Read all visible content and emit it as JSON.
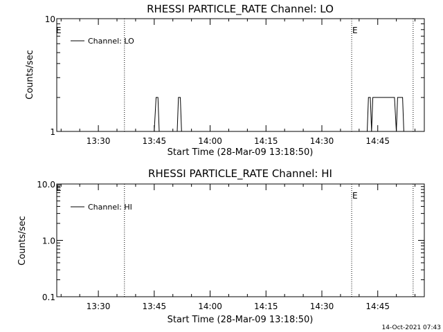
{
  "chart_data": [
    {
      "type": "line",
      "title": "RHESSI PARTICLE_RATE Channel: LO",
      "xlabel": "Start Time (28-Mar-09 13:18:50)",
      "ylabel": "Counts/sec",
      "y_scale": "log",
      "ylim": [
        1,
        10
      ],
      "y_ticks": [
        "1",
        "10"
      ],
      "xlim": [
        "13:18:50",
        "14:57:30"
      ],
      "x_ticks": [
        "13:30",
        "13:45",
        "14:00",
        "14:15",
        "14:30",
        "14:45"
      ],
      "legend": {
        "entries": [
          "Channel: LO"
        ],
        "placement": "top-left"
      },
      "event_lines": [
        {
          "time": "13:37:00",
          "label": ""
        },
        {
          "time": "14:38:00",
          "label": "E"
        },
        {
          "time": "14:54:30",
          "label": ""
        }
      ],
      "edge_label": "E",
      "series": [
        {
          "name": "Channel: LO",
          "x": [
            "13:44:40",
            "13:45:00",
            "13:45:30",
            "13:46:00",
            "13:46:20",
            "13:51:10",
            "13:51:30",
            "13:52:00",
            "13:52:20",
            "14:42:10",
            "14:42:30",
            "14:43:00",
            "14:43:20",
            "14:43:40",
            "14:44:10",
            "14:44:30",
            "14:49:30",
            "14:50:00",
            "14:50:20",
            "14:51:40",
            "14:52:00",
            "14:52:20"
          ],
          "values": [
            1,
            1,
            2,
            2,
            1,
            1,
            2,
            2,
            1,
            1,
            2,
            2,
            1,
            2,
            2,
            2,
            2,
            1,
            2,
            2,
            1,
            1
          ]
        }
      ]
    },
    {
      "type": "line",
      "title": "RHESSI PARTICLE_RATE Channel: HI",
      "xlabel": "Start Time (28-Mar-09 13:18:50)",
      "ylabel": "Counts/sec",
      "y_scale": "log",
      "ylim": [
        0.1,
        10
      ],
      "y_ticks": [
        "0.1",
        "1.0",
        "10.0"
      ],
      "xlim": [
        "13:18:50",
        "14:57:30"
      ],
      "x_ticks": [
        "13:30",
        "13:45",
        "14:00",
        "14:15",
        "14:30",
        "14:45"
      ],
      "legend": {
        "entries": [
          "Channel: HI"
        ],
        "placement": "top-left"
      },
      "event_lines": [
        {
          "time": "13:37:00",
          "label": ""
        },
        {
          "time": "14:38:00",
          "label": "E"
        },
        {
          "time": "14:54:30",
          "label": ""
        }
      ],
      "edge_label": "E",
      "series": [
        {
          "name": "Channel: HI",
          "x": [],
          "values": []
        }
      ]
    }
  ],
  "footer": {
    "timestamp": "14-Oct-2021 07:43"
  }
}
